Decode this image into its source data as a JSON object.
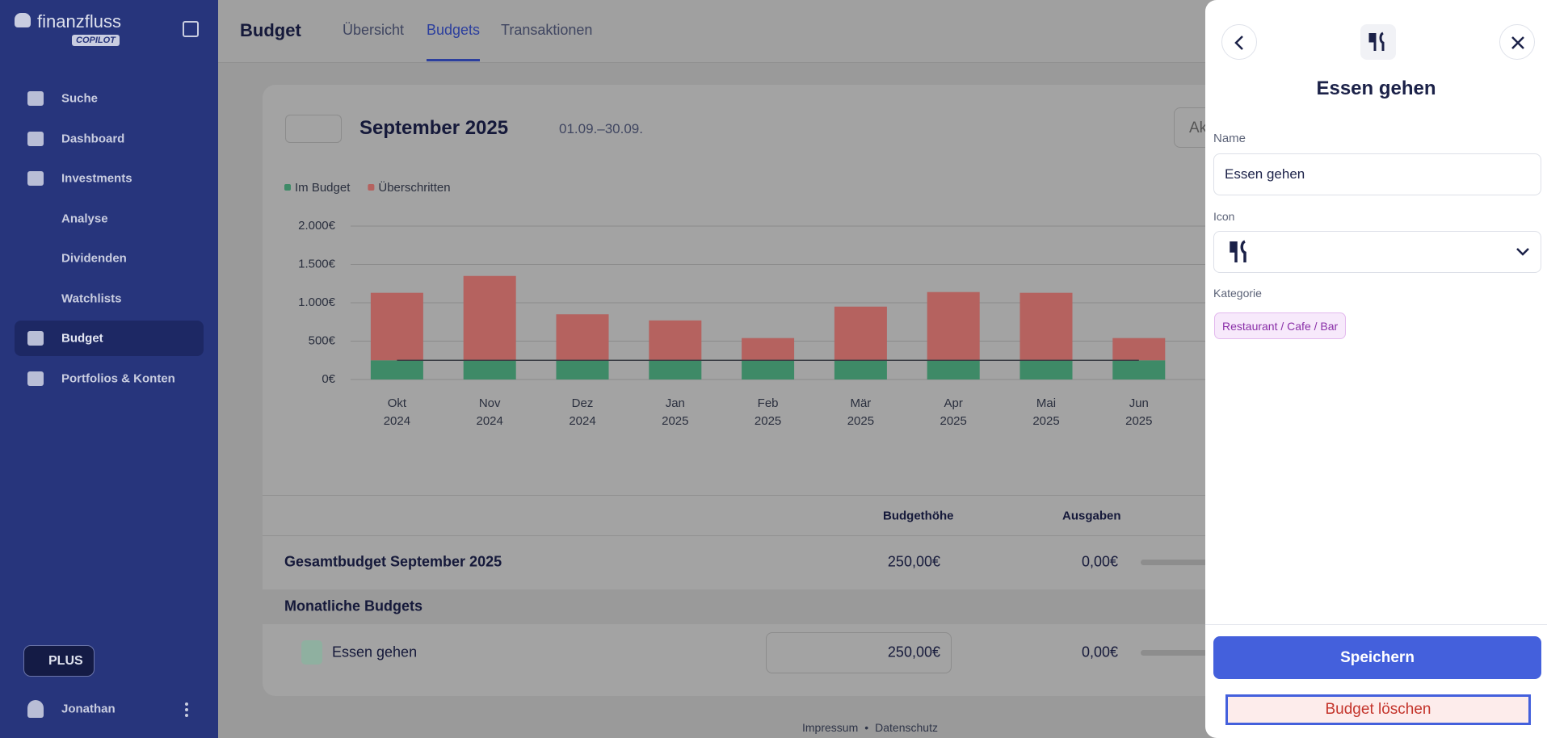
{
  "sidebar": {
    "logo": "finanzfluss",
    "logo_badge": "COPILOT",
    "nav": [
      "Suche",
      "Dashboard",
      "Investments",
      "Analyse",
      "Dividenden",
      "Watchlists",
      "Budget",
      "Portfolios & Konten"
    ],
    "plus": "PLUS",
    "user": "Jonathan"
  },
  "header": {
    "title": "Budget",
    "tabs": [
      "Übersicht",
      "Budgets",
      "Transaktionen"
    ]
  },
  "period": {
    "month": "September 2025",
    "range": "01.09.–30.09.",
    "search_partial": "Ak"
  },
  "chart_data": {
    "type": "bar",
    "stacked": true,
    "categories": [
      "Okt 2024",
      "Nov 2024",
      "Dez 2024",
      "Jan 2025",
      "Feb 2025",
      "Mär 2025",
      "Apr 2025",
      "Mai 2025",
      "Jun 2025"
    ],
    "series": [
      {
        "name": "Im Budget",
        "color": "#3e8a67",
        "values": [
          250,
          250,
          250,
          250,
          250,
          250,
          250,
          250,
          250
        ]
      },
      {
        "name": "Überschritten",
        "color": "#b5625f",
        "values": [
          880,
          1100,
          600,
          520,
          290,
          700,
          890,
          880,
          290
        ]
      }
    ],
    "budget_line": {
      "color": "#3a3d44",
      "values": [
        250,
        250,
        250,
        250,
        250,
        250,
        250,
        250,
        250
      ]
    },
    "ylim": [
      0,
      2000
    ],
    "yticks": [
      {
        "value": 0,
        "label": "0€"
      },
      {
        "value": 500,
        "label": "500€"
      },
      {
        "value": 1000,
        "label": "1.000€"
      },
      {
        "value": 1500,
        "label": "1.500€"
      },
      {
        "value": 2000,
        "label": "2.000€"
      }
    ],
    "grid": true,
    "legend": "top-left"
  },
  "table": {
    "columns": [
      "Budgethöhe",
      "Ausgaben"
    ],
    "total": {
      "label": "Gesamtbudget September 2025",
      "budget": "250,00€",
      "spent": "0,00€"
    },
    "section": "Monatliche Budgets",
    "rows": [
      {
        "label": "Essen gehen",
        "budget": "250,00€",
        "spent": "0,00€"
      }
    ]
  },
  "footer": [
    "Impressum",
    "Datenschutz"
  ],
  "panel": {
    "title": "Essen gehen",
    "name_label": "Name",
    "name_value": "Essen gehen",
    "icon_label": "Icon",
    "category_label": "Kategorie",
    "category": "Restaurant / Cafe / Bar",
    "save": "Speichern",
    "delete": "Budget löschen"
  }
}
